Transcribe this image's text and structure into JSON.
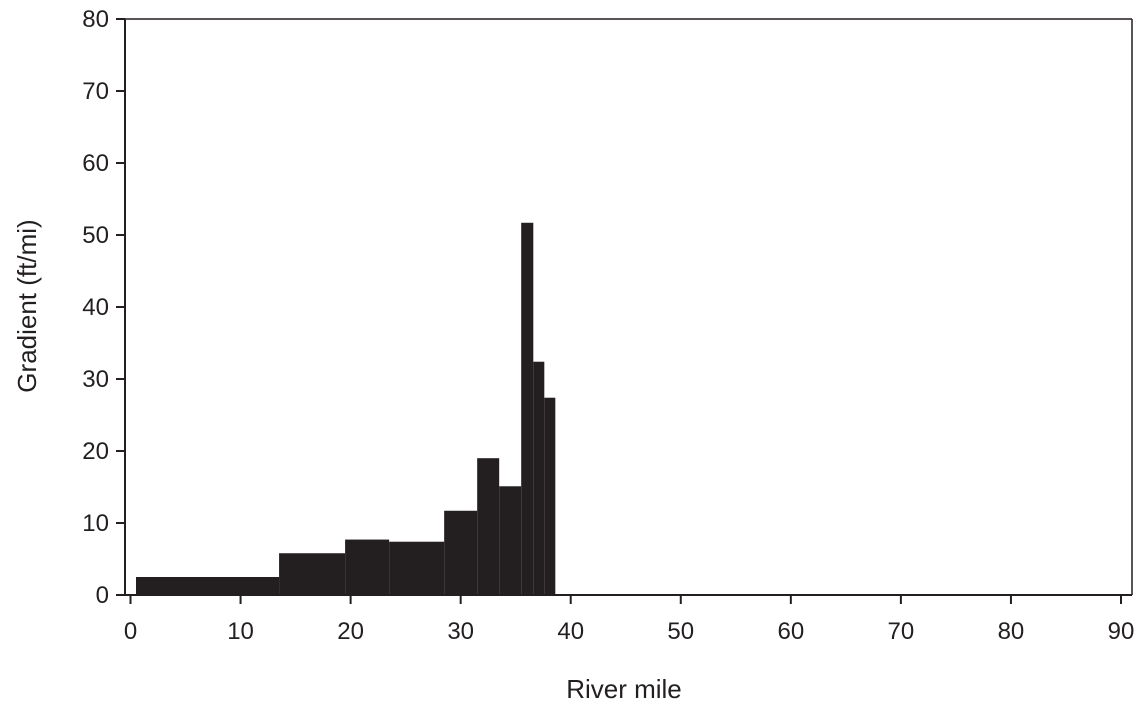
{
  "chart_data": {
    "type": "bar",
    "title": "",
    "xlabel": "River mile",
    "ylabel": "Gradient (ft/mi)",
    "xlim": [
      -0.5,
      91
    ],
    "ylim": [
      0,
      80
    ],
    "x_ticks": [
      0,
      10,
      20,
      30,
      40,
      50,
      60,
      70,
      80,
      90
    ],
    "y_ticks": [
      0,
      10,
      20,
      30,
      40,
      50,
      60,
      70,
      80
    ],
    "grid": false,
    "legend": "none",
    "bar_color": "#231f20",
    "bars": [
      {
        "x_start": 0.5,
        "x_end": 13.5,
        "value": 2.5
      },
      {
        "x_start": 13.5,
        "x_end": 19.5,
        "value": 5.8
      },
      {
        "x_start": 19.5,
        "x_end": 23.5,
        "value": 7.7
      },
      {
        "x_start": 23.5,
        "x_end": 28.5,
        "value": 7.4
      },
      {
        "x_start": 28.5,
        "x_end": 31.5,
        "value": 11.7
      },
      {
        "x_start": 31.5,
        "x_end": 33.5,
        "value": 19.0
      },
      {
        "x_start": 33.5,
        "x_end": 35.5,
        "value": 15.1
      },
      {
        "x_start": 35.5,
        "x_end": 36.6,
        "value": 51.7
      },
      {
        "x_start": 36.6,
        "x_end": 37.6,
        "value": 32.4
      },
      {
        "x_start": 37.6,
        "x_end": 38.6,
        "value": 27.4
      }
    ]
  }
}
